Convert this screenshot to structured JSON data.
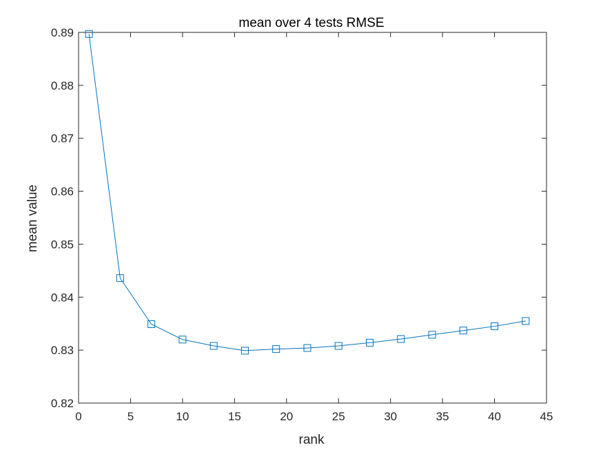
{
  "chart_data": {
    "type": "line",
    "title": "mean over 4 tests RMSE",
    "xlabel": "rank",
    "ylabel": "mean value",
    "xlim": [
      0,
      45
    ],
    "ylim": [
      0.82,
      0.89
    ],
    "xticks": [
      "0",
      "5",
      "10",
      "15",
      "20",
      "25",
      "30",
      "35",
      "40",
      "45"
    ],
    "yticks": [
      "0.82",
      "0.83",
      "0.84",
      "0.85",
      "0.86",
      "0.87",
      "0.88",
      "0.89"
    ],
    "grid": false,
    "marker": "square",
    "color": "#0072BD",
    "series": [
      {
        "x": [
          1,
          4,
          7,
          10,
          13,
          16,
          19,
          22,
          25,
          28,
          31,
          34,
          37,
          40,
          43
        ],
        "y": [
          0.8897,
          0.8436,
          0.8349,
          0.832,
          0.8308,
          0.8299,
          0.8302,
          0.8304,
          0.8308,
          0.8314,
          0.8321,
          0.8329,
          0.8337,
          0.8345,
          0.8355
        ]
      }
    ]
  }
}
